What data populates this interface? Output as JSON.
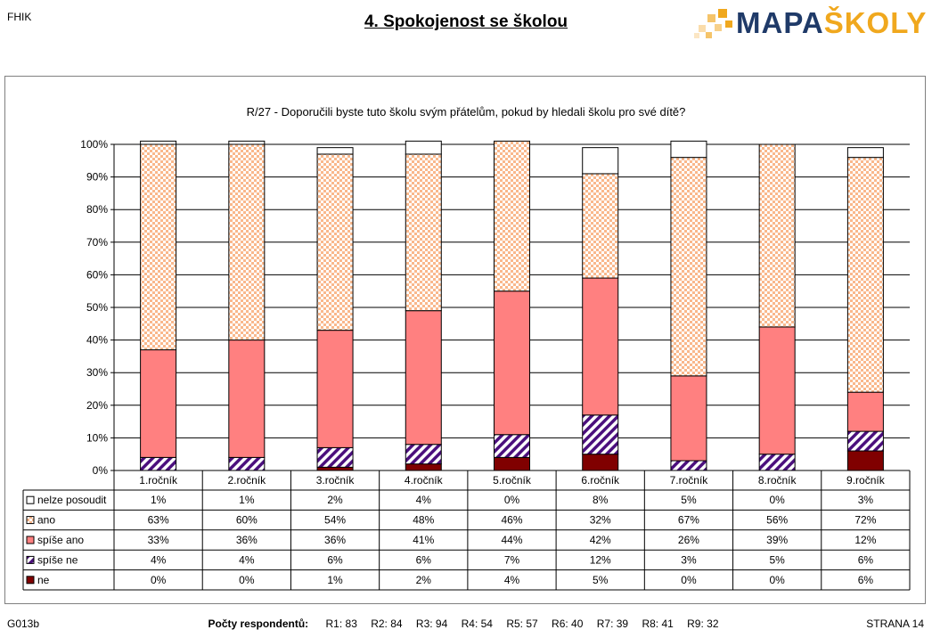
{
  "header": {
    "left_code": "FHIK",
    "title": "4. Spokojenost se školou",
    "logo_part1": "MAPA",
    "logo_part2": "ŠKOLY"
  },
  "colors": {
    "nelze_posoudit": "#ffffff",
    "ano": "#f9b88c",
    "spise_ano": "#ff8080",
    "spise_ne": "#4b0f7d",
    "ne": "#800000",
    "logo_blue": "#1f3a68",
    "logo_orange": "#f0a81e"
  },
  "chart_data": {
    "type": "bar",
    "stacked": "percent",
    "title": "R/27 - Doporučili byste tuto školu svým přátelům, pokud by hledali školu pro své dítě?",
    "categories": [
      "1.ročník",
      "2.ročník",
      "3.ročník",
      "4.ročník",
      "5.ročník",
      "6.ročník",
      "7.ročník",
      "8.ročník",
      "9.ročník"
    ],
    "ylim": [
      0,
      100
    ],
    "yticks": [
      "0%",
      "10%",
      "20%",
      "30%",
      "40%",
      "50%",
      "60%",
      "70%",
      "80%",
      "90%",
      "100%"
    ],
    "series": [
      {
        "name": "ne",
        "values": [
          0,
          0,
          1,
          2,
          4,
          5,
          0,
          0,
          6
        ]
      },
      {
        "name": "spíše ne",
        "values": [
          4,
          4,
          6,
          6,
          7,
          12,
          3,
          5,
          6
        ]
      },
      {
        "name": "spíše ano",
        "values": [
          33,
          36,
          36,
          41,
          44,
          42,
          26,
          39,
          12
        ]
      },
      {
        "name": "ano",
        "values": [
          63,
          60,
          54,
          48,
          46,
          32,
          67,
          56,
          72
        ]
      },
      {
        "name": "nelze posoudit",
        "values": [
          1,
          1,
          2,
          4,
          0,
          8,
          5,
          0,
          3
        ]
      }
    ],
    "table_row_order": [
      "nelze posoudit",
      "ano",
      "spíše ano",
      "spíše ne",
      "ne"
    ]
  },
  "footer": {
    "left_code": "G013b",
    "respondents_label": "Počty respondentů:",
    "respondents": [
      "R1: 83",
      "R2: 84",
      "R3: 94",
      "R4: 54",
      "R5: 57",
      "R6: 40",
      "R7: 39",
      "R8: 41",
      "R9: 32"
    ],
    "page": "STRANA 14"
  }
}
